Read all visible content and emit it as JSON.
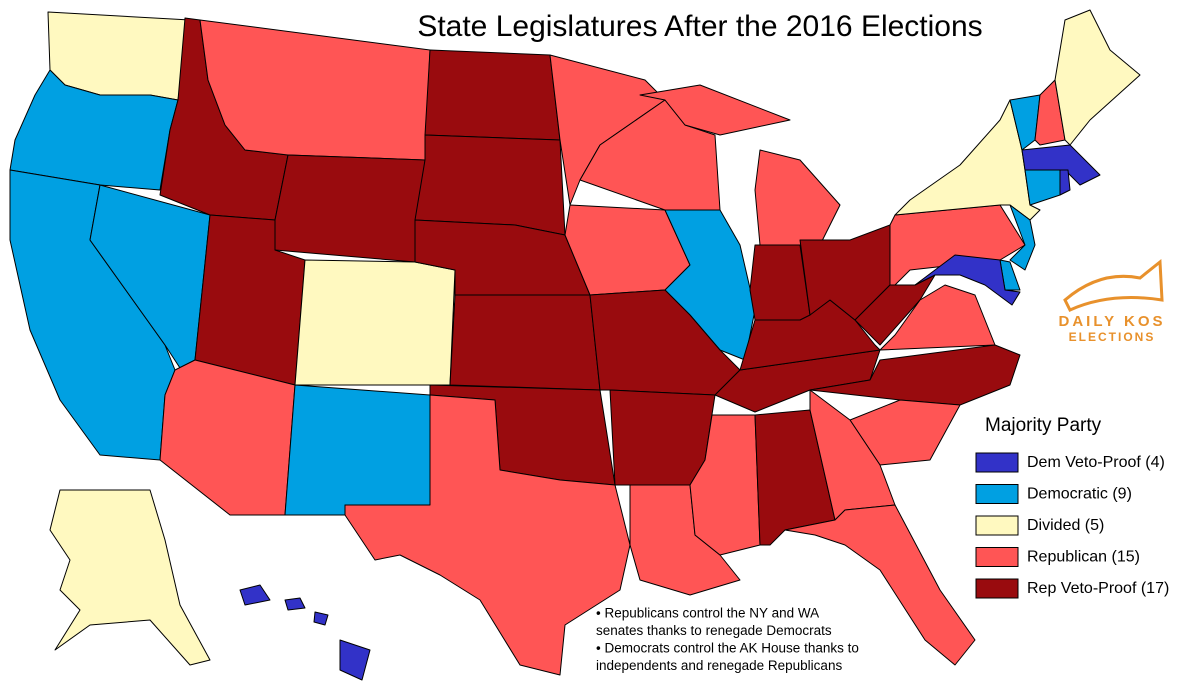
{
  "title": "State Legislatures After the 2016 Elections",
  "legend": {
    "title": "Majority Party",
    "items": [
      {
        "label": "Dem Veto-Proof (4)",
        "color": "#3232c8"
      },
      {
        "label": "Democratic (9)",
        "color": "#00a0e2"
      },
      {
        "label": "Divided (5)",
        "color": "#fff9c0"
      },
      {
        "label": "Republican (15)",
        "color": "#ff5555"
      },
      {
        "label": "Rep Veto-Proof (17)",
        "color": "#990b0e"
      }
    ]
  },
  "notes": [
    "• Republicans control the NY and WA",
    "senates thanks to renegade Democrats",
    "• Democrats control the AK House thanks to",
    "independents and renegade Republicans"
  ],
  "logo": [
    "DAILY KOS",
    "ELECTIONS"
  ]
}
